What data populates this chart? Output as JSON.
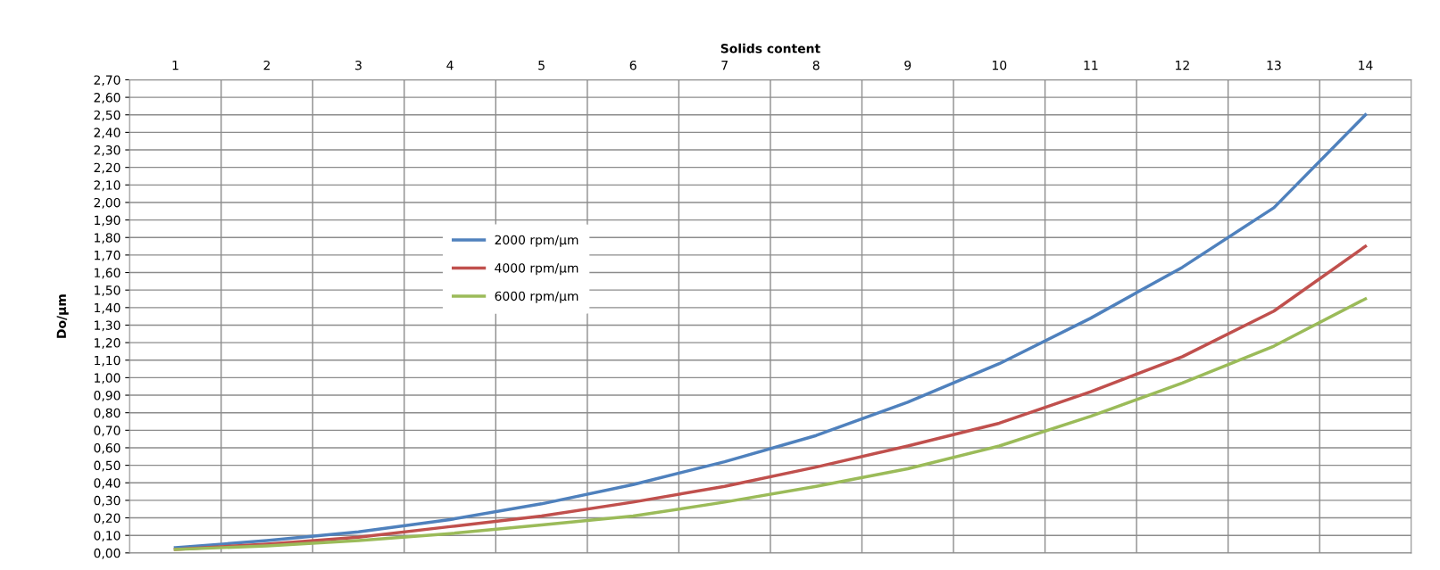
{
  "chart_data": {
    "type": "line",
    "xlabel": "Solids content",
    "ylabel": "Do/µm",
    "categories": [
      "1",
      "2",
      "3",
      "4",
      "5",
      "6",
      "7",
      "8",
      "9",
      "10",
      "11",
      "12",
      "13",
      "14"
    ],
    "series": [
      {
        "name": "2000 rpm/µm",
        "color": "#4f81bd",
        "values": [
          0.03,
          0.07,
          0.12,
          0.19,
          0.28,
          0.39,
          0.52,
          0.67,
          0.86,
          1.08,
          1.34,
          1.63,
          1.97,
          2.5
        ]
      },
      {
        "name": "4000 rpm/µm",
        "color": "#c0504d",
        "values": [
          0.02,
          0.05,
          0.09,
          0.15,
          0.21,
          0.29,
          0.38,
          0.49,
          0.61,
          0.74,
          0.92,
          1.12,
          1.38,
          1.75
        ]
      },
      {
        "name": "6000 rpm/µm",
        "color": "#9bbb59",
        "values": [
          0.02,
          0.04,
          0.07,
          0.11,
          0.16,
          0.21,
          0.29,
          0.38,
          0.48,
          0.61,
          0.78,
          0.97,
          1.18,
          1.45
        ]
      }
    ],
    "ylim": [
      0,
      2.7
    ],
    "yticks": [
      {
        "value": 0,
        "label": "0,00"
      },
      {
        "value": 0.1,
        "label": "0,10"
      },
      {
        "value": 0.2,
        "label": "0,20"
      },
      {
        "value": 0.3,
        "label": "0,30"
      },
      {
        "value": 0.4,
        "label": "0,40"
      },
      {
        "value": 0.5,
        "label": "0,50"
      },
      {
        "value": 0.6,
        "label": "0,60"
      },
      {
        "value": 0.7,
        "label": "0,70"
      },
      {
        "value": 0.8,
        "label": "0,80"
      },
      {
        "value": 0.9,
        "label": "0,90"
      },
      {
        "value": 1.0,
        "label": "1,00"
      },
      {
        "value": 1.1,
        "label": "1,10"
      },
      {
        "value": 1.2,
        "label": "1,20"
      },
      {
        "value": 1.3,
        "label": "1,30"
      },
      {
        "value": 1.4,
        "label": "1,40"
      },
      {
        "value": 1.5,
        "label": "1,50"
      },
      {
        "value": 1.6,
        "label": "1,60"
      },
      {
        "value": 1.7,
        "label": "1,70"
      },
      {
        "value": 1.8,
        "label": "1,80"
      },
      {
        "value": 1.9,
        "label": "1,90"
      },
      {
        "value": 2.0,
        "label": "2,00"
      },
      {
        "value": 2.1,
        "label": "2,10"
      },
      {
        "value": 2.2,
        "label": "2,20"
      },
      {
        "value": 2.3,
        "label": "2,30"
      },
      {
        "value": 2.4,
        "label": "2,40"
      },
      {
        "value": 2.5,
        "label": "2,50"
      },
      {
        "value": 2.6,
        "label": "2,60"
      },
      {
        "value": 2.7,
        "label": "2,70"
      }
    ],
    "grid": true,
    "legend": "left",
    "marker": "none",
    "line_style": "solid"
  }
}
